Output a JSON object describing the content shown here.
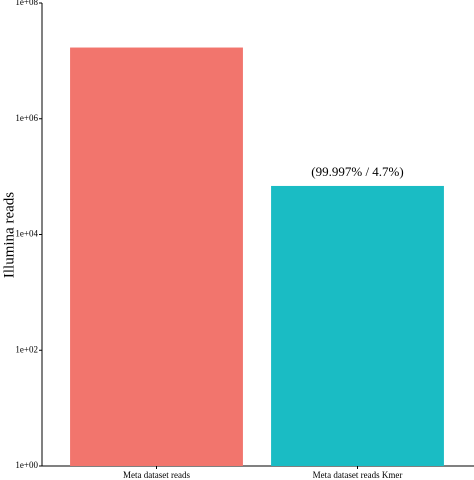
{
  "chart_data": {
    "type": "bar",
    "y_label": "Illumina reads",
    "categories": [
      "Meta dataset reads",
      "Meta dataset reads Kmer"
    ],
    "values": [
      17000000,
      69000
    ],
    "colors": [
      "#f2756d",
      "#1abcc4"
    ],
    "annotation": "(99.997% / 4.7%)",
    "log_scale": true,
    "ylim": [
      1,
      100000000
    ],
    "yticks": [
      {
        "value": 1,
        "label": "1e+00"
      },
      {
        "value": 100,
        "label": "1e+02"
      },
      {
        "value": 10000,
        "label": "1e+04"
      },
      {
        "value": 1000000,
        "label": "1e+06"
      },
      {
        "value": 100000000,
        "label": "1e+08"
      }
    ],
    "grid": false
  }
}
